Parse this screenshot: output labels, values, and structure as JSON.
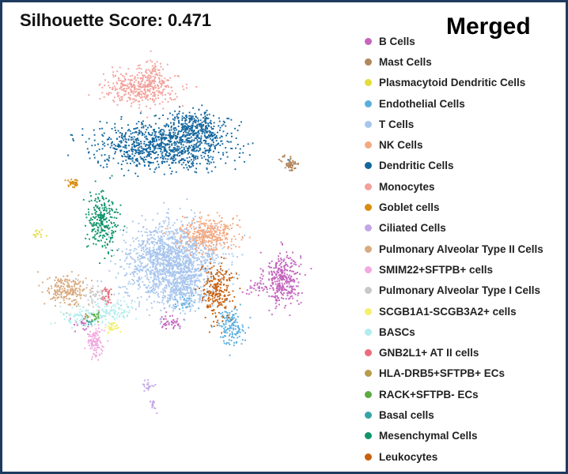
{
  "chart_data": {
    "type": "scatter",
    "title": "Silhouette Score: 0.471",
    "subtitle": "Merged",
    "xlabel": "",
    "ylabel": "",
    "axes_visible": false,
    "grid": false,
    "legend_position": "right",
    "xlim": [
      0,
      100
    ],
    "ylim": [
      0,
      100
    ],
    "series": [
      {
        "name": "B Cells",
        "color": "#c365bd",
        "clusters": [
          {
            "x": 77.5,
            "y": 39.5,
            "sx": 2.7,
            "sy": 3.6,
            "n": 340
          },
          {
            "x": 69.0,
            "y": 37.0,
            "sx": 2.2,
            "sy": 0.8,
            "n": 25
          },
          {
            "x": 44.0,
            "y": 28.5,
            "sx": 2.0,
            "sy": 1.2,
            "n": 45
          },
          {
            "x": 17.0,
            "y": 27.5,
            "sx": 1.4,
            "sy": 1.0,
            "n": 20
          }
        ]
      },
      {
        "name": "Mast Cells",
        "color": "#b2875e",
        "clusters": [
          {
            "x": 80.0,
            "y": 70.0,
            "sx": 1.3,
            "sy": 1.0,
            "n": 60
          }
        ]
      },
      {
        "name": "Plasmacytoid Dendritic Cells",
        "color": "#e2dc3c",
        "clusters": [
          {
            "x": 3.5,
            "y": 51.5,
            "sx": 0.9,
            "sy": 0.6,
            "n": 16
          }
        ]
      },
      {
        "name": "Endothelial Cells",
        "color": "#5aaedf",
        "clusters": [
          {
            "x": 62.0,
            "y": 27.0,
            "sx": 2.0,
            "sy": 2.3,
            "n": 140
          },
          {
            "x": 48.0,
            "y": 33.5,
            "sx": 1.8,
            "sy": 1.4,
            "n": 40
          }
        ]
      },
      {
        "name": "T Cells",
        "color": "#a8c6ed",
        "clusters": [
          {
            "x": 44.0,
            "y": 44.0,
            "sx": 7.0,
            "sy": 5.0,
            "n": 1500
          },
          {
            "x": 48.0,
            "y": 36.0,
            "sx": 4.0,
            "sy": 2.2,
            "n": 200
          }
        ]
      },
      {
        "name": "NK Cells",
        "color": "#f4a981",
        "clusters": [
          {
            "x": 55.0,
            "y": 51.5,
            "sx": 4.0,
            "sy": 2.3,
            "n": 360
          }
        ]
      },
      {
        "name": "Dendritic Cells",
        "color": "#14679e",
        "clusters": [
          {
            "x": 42.0,
            "y": 75.0,
            "sx": 10.0,
            "sy": 3.0,
            "n": 1000
          },
          {
            "x": 51.5,
            "y": 80.0,
            "sx": 4.0,
            "sy": 1.8,
            "n": 220
          }
        ]
      },
      {
        "name": "Monocytes",
        "color": "#f2a19b",
        "clusters": [
          {
            "x": 34.5,
            "y": 90.0,
            "sx": 5.5,
            "sy": 2.3,
            "n": 400
          },
          {
            "x": 38.5,
            "y": 94.0,
            "sx": 1.2,
            "sy": 1.8,
            "n": 50
          }
        ]
      },
      {
        "name": "Goblet cells",
        "color": "#d88d0f",
        "clusters": [
          {
            "x": 14.0,
            "y": 65.0,
            "sx": 0.8,
            "sy": 0.6,
            "n": 35
          }
        ]
      },
      {
        "name": "Ciliated Cells",
        "color": "#c2a6e6",
        "clusters": [
          {
            "x": 37.0,
            "y": 11.5,
            "sx": 0.9,
            "sy": 0.6,
            "n": 20
          },
          {
            "x": 38.5,
            "y": 6.0,
            "sx": 0.6,
            "sy": 1.0,
            "n": 18
          }
        ]
      },
      {
        "name": "Pulmonary Alveolar Type II Cells",
        "color": "#d8ab80",
        "clusters": [
          {
            "x": 12.5,
            "y": 36.5,
            "sx": 3.0,
            "sy": 2.0,
            "n": 220
          }
        ]
      },
      {
        "name": "SMIM22+SFTPB+ cells",
        "color": "#f2a9e0",
        "clusters": [
          {
            "x": 21.0,
            "y": 23.0,
            "sx": 1.3,
            "sy": 2.0,
            "n": 110
          }
        ]
      },
      {
        "name": "Pulmonary Alveolar Type I Cells",
        "color": "#c8c8c8",
        "clusters": [
          {
            "x": 21.5,
            "y": 35.0,
            "sx": 1.6,
            "sy": 1.2,
            "n": 50
          }
        ]
      },
      {
        "name": "SCGB1A1-SCGB3A2+ cells",
        "color": "#f5ef6c",
        "clusters": [
          {
            "x": 26.0,
            "y": 26.5,
            "sx": 1.1,
            "sy": 0.9,
            "n": 35
          }
        ]
      },
      {
        "name": "BASCs",
        "color": "#b2eced",
        "clusters": [
          {
            "x": 19.5,
            "y": 30.0,
            "sx": 4.5,
            "sy": 1.3,
            "n": 130
          },
          {
            "x": 28.0,
            "y": 31.5,
            "sx": 2.5,
            "sy": 1.5,
            "n": 60
          }
        ]
      },
      {
        "name": "GNB2L1+ AT II cells",
        "color": "#ec6c7e",
        "clusters": [
          {
            "x": 24.5,
            "y": 35.0,
            "sx": 0.8,
            "sy": 1.3,
            "n": 30
          }
        ]
      },
      {
        "name": "HLA-DRB5+SFTPB+ ECs",
        "color": "#b89b4b",
        "clusters": [
          {
            "x": 18.0,
            "y": 29.5,
            "sx": 0.5,
            "sy": 0.5,
            "n": 8
          }
        ]
      },
      {
        "name": "RACK+SFTPB- ECs",
        "color": "#5dac42",
        "clusters": [
          {
            "x": 21.0,
            "y": 29.5,
            "sx": 0.7,
            "sy": 0.7,
            "n": 18
          }
        ]
      },
      {
        "name": "Basal cells",
        "color": "#36a4a6",
        "clusters": [
          {
            "x": 19.0,
            "y": 28.0,
            "sx": 0.5,
            "sy": 0.5,
            "n": 8
          }
        ]
      },
      {
        "name": "Mesenchymal Cells",
        "color": "#11946b",
        "clusters": [
          {
            "x": 23.0,
            "y": 55.0,
            "sx": 2.3,
            "sy": 3.8,
            "n": 260
          }
        ]
      },
      {
        "name": "Leukocytes",
        "color": "#c9600e",
        "clusters": [
          {
            "x": 57.5,
            "y": 36.0,
            "sx": 2.5,
            "sy": 4.0,
            "n": 230
          }
        ]
      }
    ]
  }
}
